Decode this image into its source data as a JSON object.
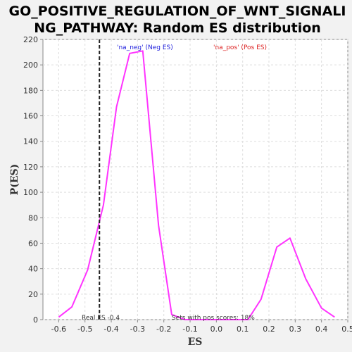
{
  "chart_data": {
    "type": "line",
    "title_lines": [
      "GO_POSITIVE_REGULATION_OF_WNT_SIGNALI",
      "NG_PATHWAY: Random ES distribution"
    ],
    "xlabel": "ES",
    "ylabel": "P(ES)",
    "xlim": [
      -0.66,
      0.5
    ],
    "ylim": [
      0,
      220
    ],
    "xticks": [
      -0.6,
      -0.5,
      -0.4,
      -0.3,
      -0.2,
      -0.1,
      0.0,
      0.1,
      0.2,
      0.3,
      0.4,
      0.5
    ],
    "xtick_labels": [
      "-0.6",
      "-0.5",
      "-0.4",
      "-0.3",
      "-0.2",
      "-0.1",
      "0.0",
      "0.1",
      "0.2",
      "0.3",
      "0.4",
      "0.5"
    ],
    "yticks": [
      0,
      20,
      40,
      60,
      80,
      100,
      120,
      140,
      160,
      180,
      200,
      220
    ],
    "ytick_labels": [
      "0",
      "20",
      "40",
      "60",
      "80",
      "100",
      "120",
      "140",
      "160",
      "180",
      "200",
      "220"
    ],
    "grid": true,
    "series": [
      {
        "color": "#ff33ff",
        "x": [
          -0.6,
          -0.55,
          -0.49,
          -0.43,
          -0.38,
          -0.33,
          -0.28,
          -0.22,
          -0.17,
          -0.12,
          -0.06,
          0.0,
          0.06,
          0.12,
          0.17,
          0.23,
          0.28,
          0.34,
          0.4,
          0.45
        ],
        "y": [
          2,
          10,
          39,
          90,
          167,
          209,
          211,
          74,
          4,
          0,
          0,
          0,
          0,
          0,
          16,
          57,
          64,
          32,
          9,
          2
        ]
      }
    ],
    "real_es": -0.445,
    "annotations": {
      "neg_label": "'na_neg' (Neg ES)",
      "pos_label": "'na_pos' (Pos ES)",
      "real_es_text": "Real ES -0.4",
      "pos_scores_text": "Sets with pos scores: 18%"
    },
    "colors": {
      "neg": "#2222dd",
      "pos": "#dd2222",
      "grid": "#dddddd"
    }
  }
}
